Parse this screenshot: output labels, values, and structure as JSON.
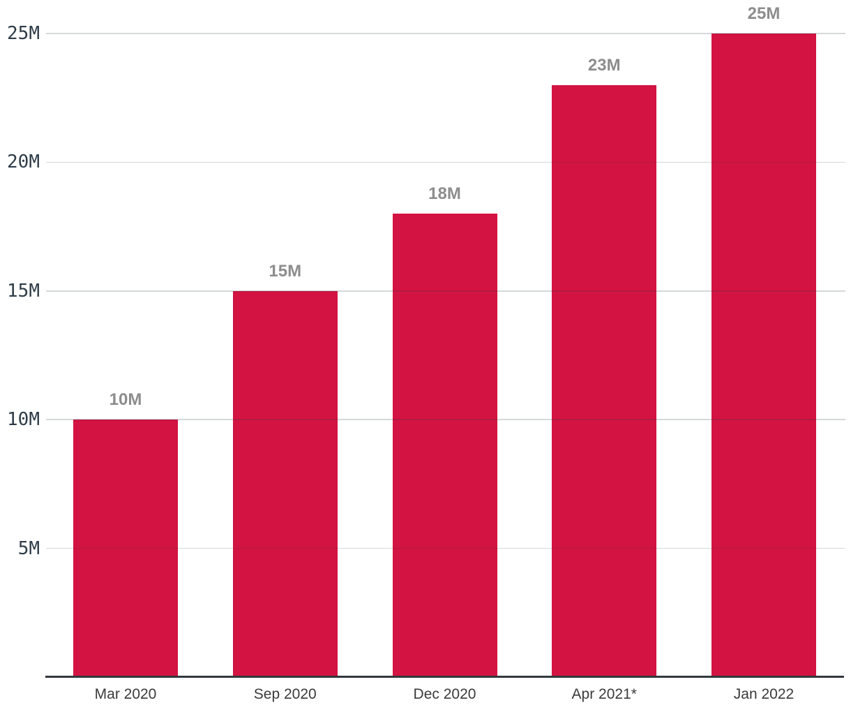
{
  "chart_data": {
    "type": "bar",
    "categories": [
      "Mar 2020",
      "Sep 2020",
      "Dec 2020",
      "Apr 2021*",
      "Jan 2022"
    ],
    "values": [
      10,
      15,
      18,
      23,
      25
    ],
    "value_labels": [
      "10M",
      "15M",
      "18M",
      "23M",
      "25M"
    ],
    "unit": "M",
    "y_ticks": [
      {
        "value": 5,
        "label": "5M"
      },
      {
        "value": 10,
        "label": "10M"
      },
      {
        "value": 15,
        "label": "15M"
      },
      {
        "value": 20,
        "label": "20M"
      },
      {
        "value": 25,
        "label": "25M"
      }
    ],
    "ylim": [
      0,
      26.3
    ],
    "grid": "horizontal",
    "legend_position": "none",
    "colors": {
      "bar": "#d31342",
      "grid_line": "rgba(47,60,71,0.20)",
      "axis_line": "#32383d",
      "y_tick_label": "#2e3c48",
      "x_tick_label": "#3a3a3a",
      "value_label": "#8d8d8d"
    }
  }
}
